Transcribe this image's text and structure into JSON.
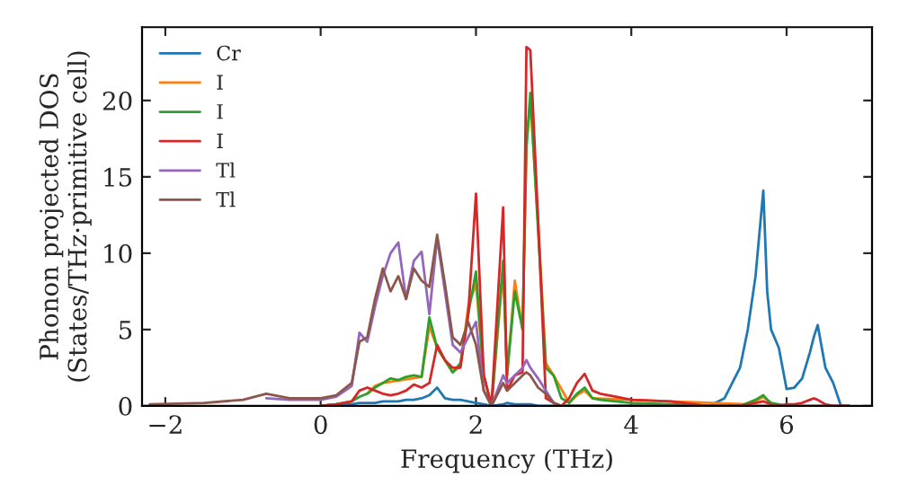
{
  "chart_data": {
    "type": "line",
    "xlabel": "Frequency (THz)",
    "ylabel": "Phonon projected DOS\n(States/THz·primitive cell)",
    "xlim": [
      -2.3,
      7.1
    ],
    "ylim": [
      0,
      24.8
    ],
    "xticks": [
      -2,
      0,
      2,
      4,
      6
    ],
    "yticks": [
      0,
      5,
      10,
      15,
      20
    ],
    "grid": false,
    "legend": "top left",
    "tick_labels": "xy",
    "x": [
      -2.2,
      -1.5,
      -1.0,
      -0.7,
      -0.4,
      0.0,
      0.2,
      0.4,
      0.5,
      0.6,
      0.7,
      0.8,
      0.9,
      1.0,
      1.1,
      1.2,
      1.3,
      1.4,
      1.5,
      1.6,
      1.7,
      1.8,
      1.9,
      2.0,
      2.1,
      2.2,
      2.35,
      2.4,
      2.5,
      2.6,
      2.65,
      2.7,
      2.8,
      2.9,
      3.0,
      3.1,
      3.2,
      3.3,
      3.4,
      3.5,
      3.6,
      3.8,
      4.0,
      4.5,
      5.0,
      5.2,
      5.4,
      5.5,
      5.6,
      5.7,
      5.75,
      5.8,
      5.9,
      6.0,
      6.1,
      6.2,
      6.3,
      6.35,
      6.4,
      6.5,
      6.6,
      6.7,
      6.8
    ],
    "series": [
      {
        "name": "Cr",
        "color": "#1f77b4",
        "values": [
          null,
          null,
          null,
          null,
          null,
          0,
          0.1,
          0.1,
          0.2,
          0.2,
          0.2,
          0.3,
          0.3,
          0.3,
          0.4,
          0.4,
          0.5,
          0.7,
          1.2,
          0.5,
          0.4,
          0.4,
          0.3,
          0.2,
          0.1,
          0,
          0.1,
          0.2,
          0.1,
          0.1,
          0.1,
          0.1,
          0,
          0,
          0,
          0,
          0,
          0,
          0,
          0,
          0,
          0,
          0,
          0,
          0,
          0.5,
          2.5,
          5,
          8.5,
          14.1,
          7.5,
          5,
          3.8,
          1.1,
          1.2,
          1.8,
          3.5,
          4.5,
          5.3,
          2.5,
          1.5,
          0,
          0
        ]
      },
      {
        "name": "I",
        "color": "#ff7f0e",
        "values": [
          null,
          null,
          null,
          null,
          null,
          null,
          null,
          null,
          null,
          0.8,
          1.3,
          1.5,
          null,
          null,
          null,
          null,
          1.9,
          5.2,
          3.8,
          null,
          2.2,
          2.6,
          6.5,
          8.0,
          2.0,
          0,
          9.0,
          2.0,
          8.2,
          5.0,
          17,
          20,
          12,
          2.8,
          2.0,
          null,
          0.2,
          0.7,
          1.0,
          0.5,
          null,
          null,
          null,
          null,
          null,
          null,
          null,
          0.1,
          0.3,
          0.6,
          0.4,
          0.2,
          null,
          null,
          null,
          null,
          null,
          null,
          null,
          null,
          null,
          null,
          null
        ]
      },
      {
        "name": "I",
        "color": "#2ca02c",
        "values": [
          null,
          null,
          null,
          null,
          null,
          0,
          0.1,
          0.3,
          0.6,
          0.8,
          1.2,
          1.5,
          1.8,
          1.7,
          1.9,
          2.0,
          1.9,
          5.8,
          3.8,
          3.0,
          2.2,
          2.8,
          6.0,
          8.8,
          2.0,
          0,
          9.5,
          2.0,
          7.5,
          5.0,
          17,
          20.5,
          11.5,
          2.5,
          2.0,
          0.5,
          0.2,
          0.8,
          1.2,
          0.5,
          0.4,
          0.3,
          0.2,
          0.1,
          0,
          0,
          0,
          0.2,
          0.4,
          0.7,
          0.4,
          0.2,
          0.1,
          0,
          0,
          null,
          null,
          null,
          null,
          null,
          null,
          null,
          null
        ]
      },
      {
        "name": "I",
        "color": "#d62728",
        "values": [
          null,
          null,
          null,
          null,
          null,
          0,
          0.1,
          0.3,
          1.0,
          1.2,
          1.0,
          0.8,
          0.7,
          0.8,
          1.0,
          1.4,
          1.2,
          1.5,
          4.0,
          3.0,
          2.5,
          2.5,
          6.0,
          13.9,
          2.0,
          0,
          13.0,
          1.0,
          2.0,
          2.2,
          23.5,
          23.3,
          12.2,
          0.5,
          0.2,
          0,
          0.5,
          1.5,
          2.1,
          1.0,
          0.8,
          0.6,
          0.4,
          0.3,
          0,
          0,
          0,
          0.1,
          0.2,
          0.3,
          0.2,
          0.1,
          0,
          0.1,
          0.1,
          0.2,
          0.4,
          0.5,
          0.4,
          0.1,
          0,
          0,
          0
        ]
      },
      {
        "name": "Tl",
        "color": "#9467bd",
        "values": [
          null,
          null,
          null,
          0.5,
          0.4,
          0.4,
          0.6,
          1.3,
          4.8,
          4.2,
          6.5,
          8.5,
          10.0,
          10.7,
          7.0,
          9.5,
          10.1,
          6.0,
          11.0,
          7.5,
          4.0,
          3.5,
          4.5,
          5.5,
          1.0,
          0,
          2.0,
          1.5,
          2.0,
          2.5,
          3.0,
          2.5,
          1.8,
          1.0,
          0.2,
          0,
          0,
          null,
          null,
          null,
          null,
          null,
          null,
          null,
          null,
          null,
          null,
          null,
          null,
          null,
          null,
          null,
          null,
          null,
          null,
          null,
          null,
          null,
          null,
          null,
          null,
          null,
          null
        ]
      },
      {
        "name": "Tl",
        "color": "#8c564b",
        "values": [
          0.1,
          0.2,
          0.4,
          0.8,
          0.5,
          0.5,
          0.7,
          1.5,
          4.2,
          4.5,
          7.0,
          9.0,
          7.5,
          8.5,
          7.0,
          9.0,
          8.2,
          7.8,
          11.2,
          8.0,
          4.5,
          4.0,
          5.5,
          4.0,
          1.0,
          0,
          1.5,
          1.0,
          1.5,
          2.0,
          2.2,
          2.0,
          1.2,
          0.8,
          0.2,
          0,
          0,
          0,
          0,
          0,
          0,
          0,
          0,
          0,
          0,
          0,
          0,
          0,
          0,
          0,
          0,
          0,
          0,
          0,
          0,
          0,
          0,
          0,
          0,
          0,
          0,
          0,
          0
        ]
      }
    ]
  }
}
